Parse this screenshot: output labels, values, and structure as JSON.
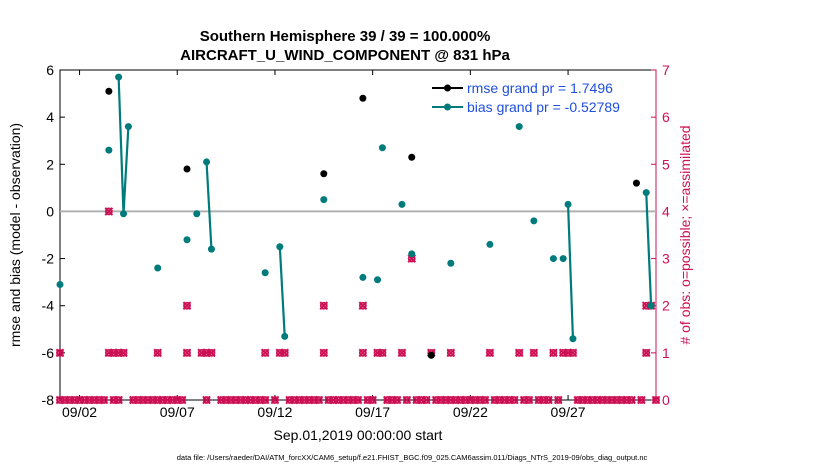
{
  "chart_data": {
    "type": "scatter",
    "title_line1": "Southern Hemisphere 39 / 39 = 100.000%",
    "title_line2": "AIRCRAFT_U_WIND_COMPONENT @ 831 hPa",
    "xlabel": "Sep.01,2019 00:00:00 start",
    "ylabel_left": "rmse and bias (model - observation)",
    "ylabel_right": "# of obs: o=possible; ×=assimilated",
    "footer": "data file: /Users/raeder/DAI/ATM_forcXX/CAM6_setup/f.e21.FHIST_BGC.f09_025.CAM6assim.011/Diags_NTrS_2019-09/obs_diag_output.nc",
    "xlim": [
      1,
      31.5
    ],
    "ylim_left": [
      -8,
      6
    ],
    "ylim_right": [
      0,
      7
    ],
    "x_ticks": [
      2,
      7,
      12,
      17,
      22,
      27
    ],
    "x_tick_labels": [
      "09/02",
      "09/07",
      "09/12",
      "09/17",
      "09/22",
      "09/27"
    ],
    "y_ticks_left": [
      "6",
      "4",
      "2",
      "0",
      "-2",
      "-4",
      "-6",
      "-8"
    ],
    "y_ticks_right": [
      "7",
      "6",
      "5",
      "4",
      "3",
      "2",
      "1",
      "0"
    ],
    "legend": {
      "rmse_label": "rmse grand pr = 1.7496",
      "bias_label": "bias grand pr = -0.52789"
    },
    "colors": {
      "rmse": "#000000",
      "bias": "#007b7b",
      "obs": "#cc1155",
      "legend_text": "#1f4fe0",
      "zero_line": "#b0b0b0"
    },
    "rmse": [
      {
        "x": 3.5,
        "y": 5.1
      },
      {
        "x": 7.5,
        "y": 1.8
      },
      {
        "x": 14.5,
        "y": 1.6
      },
      {
        "x": 16.5,
        "y": 4.8
      },
      {
        "x": 19.0,
        "y": 2.3
      },
      {
        "x": 20.0,
        "y": -6.1
      },
      {
        "x": 30.5,
        "y": 1.2
      }
    ],
    "bias_segments": [
      [
        {
          "x": 1.0,
          "y": -3.1
        }
      ],
      [
        {
          "x": 3.5,
          "y": 2.6
        }
      ],
      [
        {
          "x": 4.0,
          "y": 5.7
        },
        {
          "x": 4.25,
          "y": -0.1
        },
        {
          "x": 4.5,
          "y": 3.6
        }
      ],
      [
        {
          "x": 6.0,
          "y": -2.4
        }
      ],
      [
        {
          "x": 7.5,
          "y": -1.2
        }
      ],
      [
        {
          "x": 8.0,
          "y": -0.1
        }
      ],
      [
        {
          "x": 8.5,
          "y": 2.1
        },
        {
          "x": 8.75,
          "y": -1.6
        }
      ],
      [
        {
          "x": 11.5,
          "y": -2.6
        }
      ],
      [
        {
          "x": 12.25,
          "y": -1.5
        },
        {
          "x": 12.5,
          "y": -5.3
        }
      ],
      [
        {
          "x": 14.5,
          "y": 0.5
        }
      ],
      [
        {
          "x": 16.5,
          "y": -2.8
        }
      ],
      [
        {
          "x": 17.25,
          "y": -2.9
        }
      ],
      [
        {
          "x": 17.5,
          "y": 2.7
        }
      ],
      [
        {
          "x": 18.5,
          "y": 0.3
        }
      ],
      [
        {
          "x": 19.0,
          "y": -1.8
        }
      ],
      [
        {
          "x": 20.0,
          "y": -6.1
        }
      ],
      [
        {
          "x": 21.0,
          "y": -2.2
        }
      ],
      [
        {
          "x": 23.0,
          "y": -1.4
        }
      ],
      [
        {
          "x": 24.5,
          "y": 3.6
        }
      ],
      [
        {
          "x": 25.25,
          "y": -0.4
        }
      ],
      [
        {
          "x": 26.25,
          "y": -2.0
        }
      ],
      [
        {
          "x": 26.75,
          "y": -2.0
        }
      ],
      [
        {
          "x": 27.0,
          "y": 0.3
        },
        {
          "x": 27.25,
          "y": -5.4
        }
      ],
      [
        {
          "x": 31.0,
          "y": 0.8
        },
        {
          "x": 31.25,
          "y": -4.0
        }
      ]
    ],
    "obs_possible": [
      [
        1.0,
        0
      ],
      [
        1.25,
        0
      ],
      [
        1.5,
        0
      ],
      [
        1.75,
        0
      ],
      [
        2.0,
        0
      ],
      [
        2.25,
        0
      ],
      [
        2.5,
        0
      ],
      [
        2.75,
        0
      ],
      [
        3.0,
        0
      ],
      [
        3.25,
        0
      ],
      [
        3.75,
        0
      ],
      [
        4.0,
        0
      ],
      [
        4.75,
        0
      ],
      [
        5.0,
        0
      ],
      [
        5.25,
        0
      ],
      [
        5.5,
        0
      ],
      [
        5.75,
        0
      ],
      [
        6.0,
        0
      ],
      [
        6.25,
        0
      ],
      [
        6.5,
        0
      ],
      [
        6.75,
        0
      ],
      [
        7.0,
        0
      ],
      [
        7.25,
        0
      ],
      [
        8.5,
        0
      ],
      [
        9.25,
        0
      ],
      [
        9.5,
        0
      ],
      [
        9.75,
        0
      ],
      [
        10.0,
        0
      ],
      [
        10.25,
        0
      ],
      [
        10.5,
        0
      ],
      [
        10.75,
        0
      ],
      [
        11.0,
        0
      ],
      [
        11.25,
        0
      ],
      [
        11.5,
        0
      ],
      [
        12.0,
        0
      ],
      [
        12.75,
        0
      ],
      [
        13.0,
        0
      ],
      [
        13.25,
        0
      ],
      [
        13.5,
        0
      ],
      [
        13.75,
        0
      ],
      [
        14.0,
        0
      ],
      [
        14.25,
        0
      ],
      [
        14.75,
        0
      ],
      [
        15.0,
        0
      ],
      [
        15.25,
        0
      ],
      [
        15.5,
        0
      ],
      [
        15.75,
        0
      ],
      [
        16.0,
        0
      ],
      [
        16.25,
        0
      ],
      [
        16.75,
        0
      ],
      [
        17.0,
        0
      ],
      [
        17.75,
        0
      ],
      [
        18.0,
        0
      ],
      [
        18.25,
        0
      ],
      [
        18.75,
        0
      ],
      [
        19.25,
        0
      ],
      [
        19.5,
        0
      ],
      [
        19.75,
        0
      ],
      [
        20.25,
        0
      ],
      [
        20.5,
        0
      ],
      [
        20.75,
        0
      ],
      [
        21.0,
        0
      ],
      [
        21.25,
        0
      ],
      [
        21.5,
        0
      ],
      [
        21.75,
        0
      ],
      [
        22.0,
        0
      ],
      [
        22.25,
        0
      ],
      [
        22.5,
        0
      ],
      [
        22.75,
        0
      ],
      [
        23.25,
        0
      ],
      [
        23.5,
        0
      ],
      [
        23.75,
        0
      ],
      [
        24.0,
        0
      ],
      [
        24.25,
        0
      ],
      [
        24.75,
        0
      ],
      [
        25.0,
        0
      ],
      [
        25.5,
        0
      ],
      [
        25.75,
        0
      ],
      [
        26.0,
        0
      ],
      [
        26.5,
        0
      ],
      [
        27.5,
        0
      ],
      [
        27.75,
        0
      ],
      [
        28.0,
        0
      ],
      [
        28.25,
        0
      ],
      [
        28.5,
        0
      ],
      [
        28.75,
        0
      ],
      [
        29.0,
        0
      ],
      [
        29.25,
        0
      ],
      [
        29.5,
        0
      ],
      [
        29.75,
        0
      ],
      [
        30.0,
        0
      ],
      [
        30.25,
        0
      ],
      [
        30.75,
        0
      ],
      [
        31.5,
        0
      ],
      [
        1.0,
        1
      ],
      [
        3.5,
        1
      ],
      [
        3.75,
        1
      ],
      [
        4.0,
        1
      ],
      [
        4.25,
        1
      ],
      [
        6.0,
        1
      ],
      [
        7.5,
        1
      ],
      [
        8.25,
        1
      ],
      [
        8.5,
        1
      ],
      [
        8.75,
        1
      ],
      [
        11.5,
        1
      ],
      [
        12.25,
        1
      ],
      [
        12.5,
        1
      ],
      [
        14.5,
        1
      ],
      [
        16.5,
        1
      ],
      [
        17.25,
        1
      ],
      [
        17.5,
        1
      ],
      [
        18.5,
        1
      ],
      [
        20.0,
        1
      ],
      [
        21.0,
        1
      ],
      [
        23.0,
        1
      ],
      [
        24.5,
        1
      ],
      [
        25.25,
        1
      ],
      [
        26.25,
        1
      ],
      [
        26.75,
        1
      ],
      [
        27.0,
        1
      ],
      [
        27.25,
        1
      ],
      [
        31.0,
        1
      ],
      [
        7.5,
        2
      ],
      [
        14.5,
        2
      ],
      [
        16.5,
        2
      ],
      [
        31.0,
        2
      ],
      [
        31.25,
        2
      ],
      [
        19.0,
        3
      ],
      [
        3.5,
        4
      ]
    ]
  }
}
